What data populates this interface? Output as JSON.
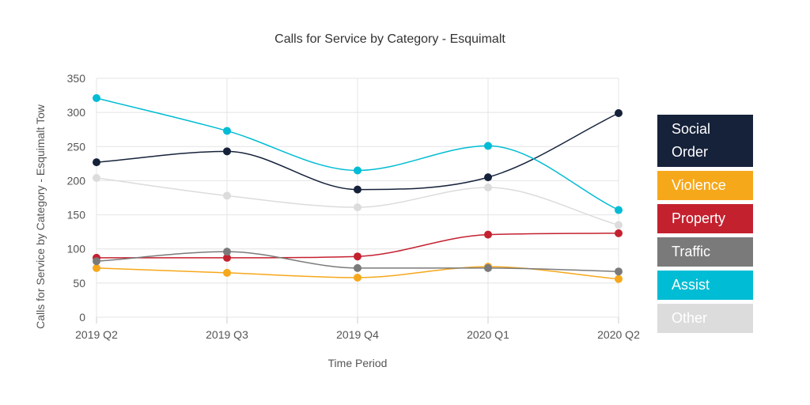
{
  "chart_data": {
    "type": "line",
    "title": "Calls for Service by Category - Esquimalt",
    "xlabel": "Time Period",
    "ylabel": "Calls for Service by Category - Esquimalt Tow",
    "categories": [
      "2019 Q2",
      "2019 Q3",
      "2019 Q4",
      "2020 Q1",
      "2020 Q2"
    ],
    "ylim": [
      0,
      350
    ],
    "yticks": [
      0,
      50,
      100,
      150,
      200,
      250,
      300,
      350
    ],
    "grid": true,
    "legend_position": "right",
    "series": [
      {
        "name": "Social Order",
        "color": "#16223a",
        "values": [
          227,
          243,
          187,
          205,
          299
        ]
      },
      {
        "name": "Violence",
        "color": "#f6a81b",
        "values": [
          72,
          65,
          58,
          74,
          56
        ]
      },
      {
        "name": "Property",
        "color": "#c4212f",
        "values": [
          87,
          87,
          89,
          121,
          123
        ]
      },
      {
        "name": "Traffic",
        "color": "#7a7a7a",
        "values": [
          82,
          96,
          72,
          72,
          67
        ]
      },
      {
        "name": "Assist",
        "color": "#00bcd4",
        "values": [
          321,
          273,
          215,
          251,
          157
        ]
      },
      {
        "name": "Other",
        "color": "#dcdcdc",
        "values": [
          204,
          178,
          161,
          190,
          135
        ]
      }
    ]
  }
}
